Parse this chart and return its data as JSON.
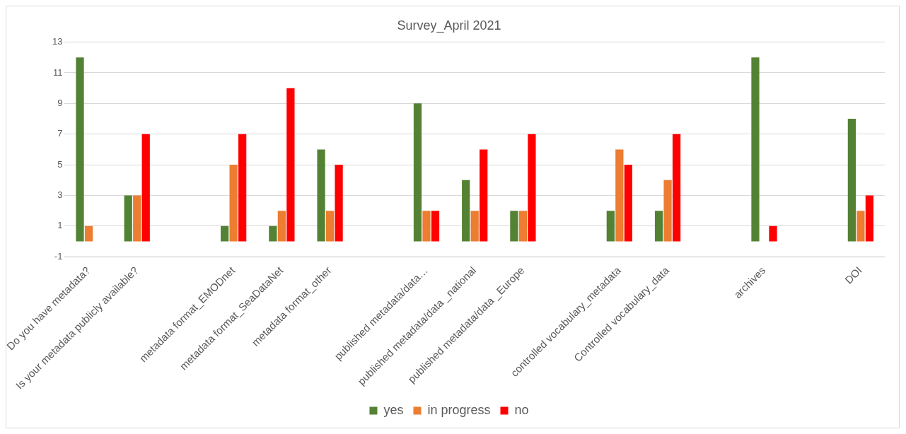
{
  "chart_data": {
    "type": "bar",
    "title": "Survey_April 2021",
    "categories": [
      "Do you have metadata?",
      "Is your metadata publicly available?",
      null,
      "metadata format_EMODnet",
      "metadata format_SeaDataNet",
      "metadata format_other",
      null,
      "published metadata/data…",
      "published metadata/data _national",
      "published metadata/data _Europe",
      null,
      "controlled vocabulary_metadata",
      "Controlled vocabulary_data",
      null,
      "archives",
      null,
      "DOI"
    ],
    "series": [
      {
        "name": "yes",
        "color": "#548235",
        "values": [
          12,
          3,
          null,
          1,
          1,
          6,
          null,
          9,
          4,
          2,
          null,
          2,
          2,
          null,
          12,
          null,
          8
        ]
      },
      {
        "name": "in progress",
        "color": "#ed7d31",
        "values": [
          1,
          3,
          null,
          5,
          2,
          2,
          null,
          2,
          2,
          2,
          null,
          6,
          4,
          null,
          null,
          null,
          2
        ]
      },
      {
        "name": "no",
        "color": "#ff0000",
        "values": [
          null,
          7,
          null,
          7,
          10,
          5,
          null,
          2,
          6,
          7,
          null,
          5,
          7,
          null,
          1,
          null,
          3
        ]
      }
    ],
    "ylim": [
      -1,
      13
    ],
    "yticks": [
      -1,
      1,
      3,
      5,
      7,
      9,
      11,
      13
    ],
    "grid": "y",
    "legend": "bottom"
  }
}
